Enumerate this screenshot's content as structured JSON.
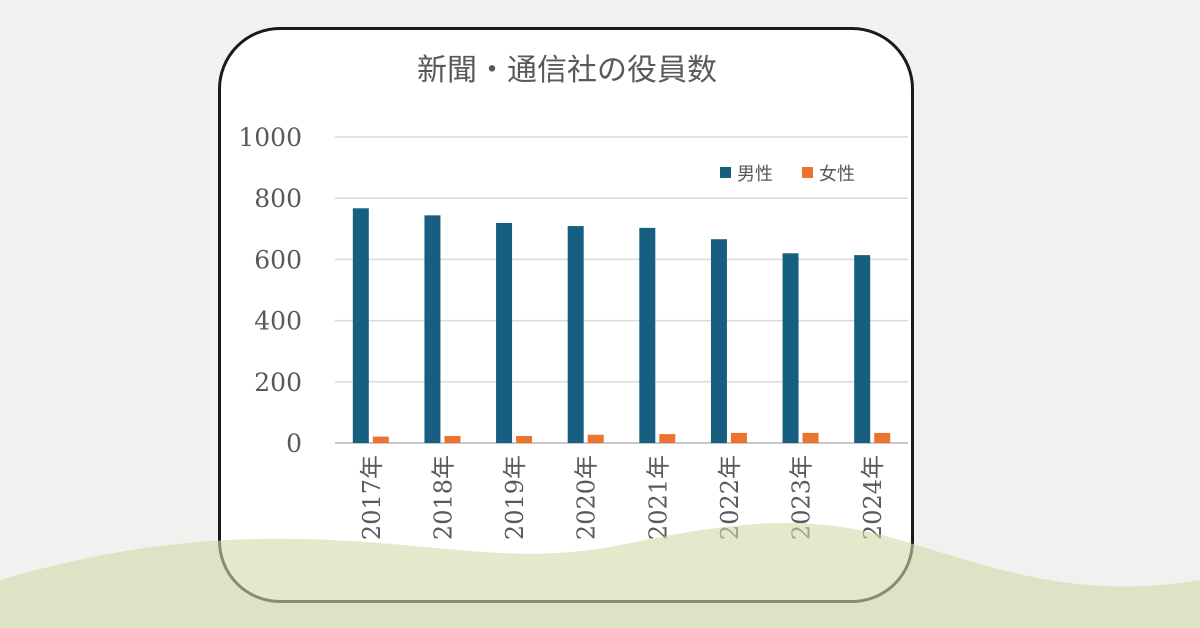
{
  "chart_data": {
    "type": "bar",
    "title": "新聞・通信社の役員数",
    "categories": [
      "2017年",
      "2018年",
      "2019年",
      "2020年",
      "2021年",
      "2022年",
      "2023年",
      "2024年"
    ],
    "series": [
      {
        "name": "男性",
        "color": "#175f80",
        "values": [
          767,
          744,
          719,
          709,
          703,
          666,
          620,
          614
        ]
      },
      {
        "name": "女性",
        "color": "#ed7331",
        "values": [
          21,
          23,
          23,
          27,
          29,
          33,
          33,
          33
        ]
      }
    ],
    "yticks": [
      "0",
      "200",
      "400",
      "600",
      "800",
      "1000"
    ],
    "ylim": [
      0,
      1000
    ],
    "grid": true,
    "legend": "top-right",
    "xlabel": "",
    "ylabel": ""
  }
}
